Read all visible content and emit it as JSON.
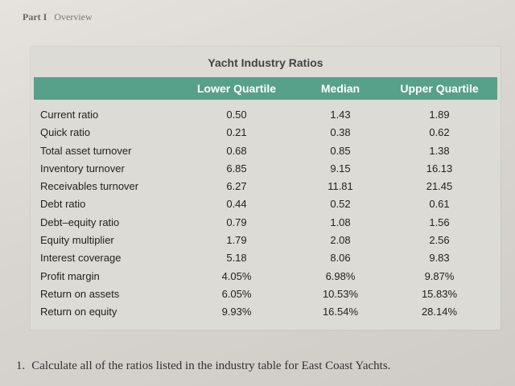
{
  "header": {
    "part": "Part I",
    "section": "Overview"
  },
  "table": {
    "title": "Yacht Industry Ratios",
    "columns": [
      "Lower Quartile",
      "Median",
      "Upper Quartile"
    ],
    "rows": [
      {
        "label": "Current ratio",
        "values": [
          "0.50",
          "1.43",
          "1.89"
        ]
      },
      {
        "label": "Quick ratio",
        "values": [
          "0.21",
          "0.38",
          "0.62"
        ]
      },
      {
        "label": "Total asset turnover",
        "values": [
          "0.68",
          "0.85",
          "1.38"
        ]
      },
      {
        "label": "Inventory turnover",
        "values": [
          "6.85",
          "9.15",
          "16.13"
        ]
      },
      {
        "label": "Receivables turnover",
        "values": [
          "6.27",
          "11.81",
          "21.45"
        ]
      },
      {
        "label": "Debt ratio",
        "values": [
          "0.44",
          "0.52",
          "0.61"
        ]
      },
      {
        "label": "Debt–equity ratio",
        "values": [
          "0.79",
          "1.08",
          "1.56"
        ]
      },
      {
        "label": "Equity multiplier",
        "values": [
          "1.79",
          "2.08",
          "2.56"
        ]
      },
      {
        "label": "Interest coverage",
        "values": [
          "5.18",
          "8.06",
          "9.83"
        ]
      },
      {
        "label": "Profit margin",
        "values": [
          "4.05%",
          "6.98%",
          "9.87%"
        ]
      },
      {
        "label": "Return on assets",
        "values": [
          "6.05%",
          "10.53%",
          "15.83%"
        ]
      },
      {
        "label": "Return on equity",
        "values": [
          "9.93%",
          "16.54%",
          "28.14%"
        ]
      }
    ]
  },
  "question": {
    "number": "1.",
    "text": "Calculate all of the ratios listed in the industry table for East Coast Yachts."
  },
  "colors": {
    "header_bar": "#57a08a",
    "table_bg": "#dcdbd5",
    "page_bg": "#d9d5d1"
  }
}
